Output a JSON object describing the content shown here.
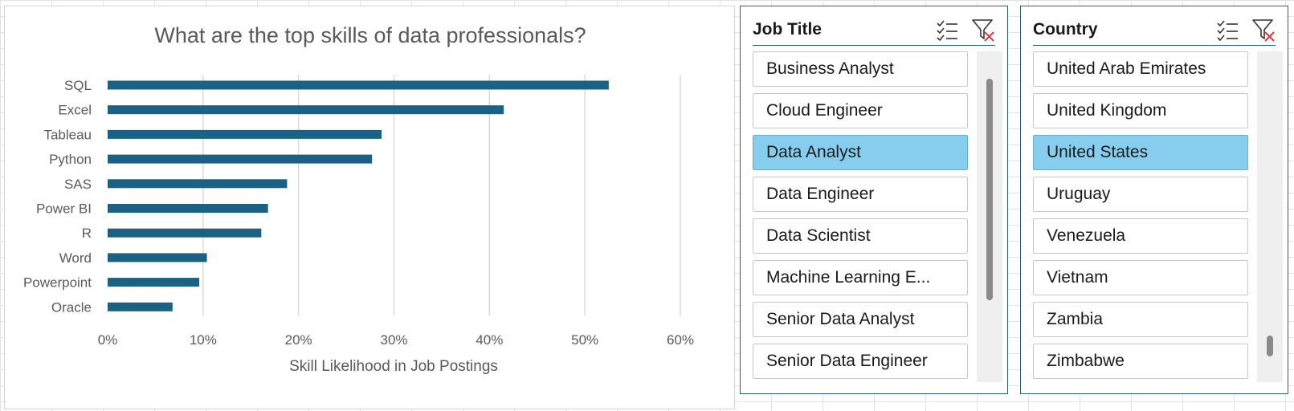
{
  "chart_data": {
    "type": "bar",
    "orientation": "horizontal",
    "title": "What are the top skills of data professionals?",
    "xlabel": "Skill Likelihood in Job Postings",
    "ylabel": "",
    "categories": [
      "SQL",
      "Excel",
      "Tableau",
      "Python",
      "SAS",
      "Power BI",
      "R",
      "Word",
      "Powerpoint",
      "Oracle"
    ],
    "values": [
      0.525,
      0.415,
      0.287,
      0.277,
      0.188,
      0.168,
      0.161,
      0.104,
      0.096,
      0.068
    ],
    "xlim": [
      0,
      0.6
    ],
    "xticks": [
      0,
      0.1,
      0.2,
      0.3,
      0.4,
      0.5,
      0.6
    ],
    "xtick_labels": [
      "0%",
      "10%",
      "20%",
      "30%",
      "40%",
      "50%",
      "60%"
    ],
    "grid": "vertical",
    "legend": "none",
    "colors": {
      "bar": "#1b6184",
      "grid": "#d9d9d9",
      "text": "#595959",
      "title": "#595959"
    }
  },
  "slicers": {
    "job_title": {
      "title": "Job Title",
      "multi_select_icon": "multi-select-icon",
      "clear_filter_icon": "clear-filter-icon",
      "items": [
        {
          "label": "Business Analyst",
          "selected": false
        },
        {
          "label": "Cloud Engineer",
          "selected": false
        },
        {
          "label": "Data Analyst",
          "selected": true
        },
        {
          "label": "Data Engineer",
          "selected": false
        },
        {
          "label": "Data Scientist",
          "selected": false
        },
        {
          "label": "Machine Learning E...",
          "selected": false
        },
        {
          "label": "Senior Data Analyst",
          "selected": false
        },
        {
          "label": "Senior Data Engineer",
          "selected": false
        }
      ]
    },
    "country": {
      "title": "Country",
      "multi_select_icon": "multi-select-icon",
      "clear_filter_icon": "clear-filter-icon",
      "items": [
        {
          "label": "United Arab Emirates",
          "selected": false
        },
        {
          "label": "United Kingdom",
          "selected": false
        },
        {
          "label": "United States",
          "selected": true
        },
        {
          "label": "Uruguay",
          "selected": false
        },
        {
          "label": "Venezuela",
          "selected": false
        },
        {
          "label": "Vietnam",
          "selected": false
        },
        {
          "label": "Zambia",
          "selected": false
        },
        {
          "label": "Zimbabwe",
          "selected": false
        }
      ]
    }
  },
  "colors": {
    "selected_item": "#87cded",
    "slicer_border": "#2f5f73",
    "clear_filter_x": "#e03c3c"
  }
}
